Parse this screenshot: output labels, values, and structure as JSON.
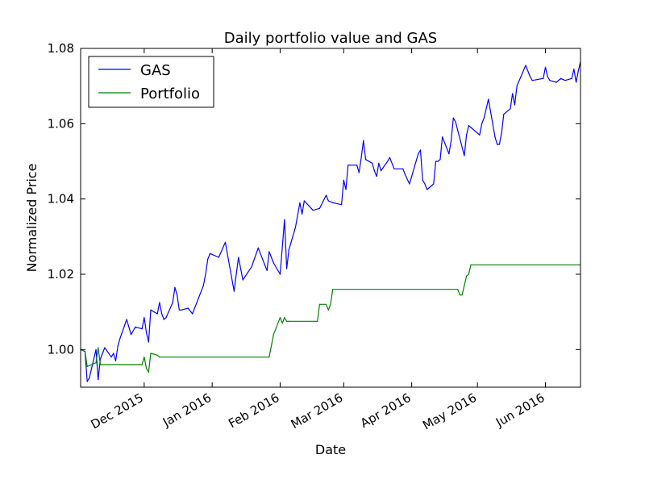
{
  "chart_data": {
    "type": "line",
    "title": "Daily portfolio value and GAS",
    "xlabel": "Date",
    "ylabel": "Normalized Price",
    "xlim": [
      "2015-11-02",
      "2016-06-17"
    ],
    "ylim": [
      0.99,
      1.08
    ],
    "yticks": [
      1.0,
      1.02,
      1.04,
      1.06,
      1.08
    ],
    "ytick_labels": [
      "1.00",
      "1.02",
      "1.04",
      "1.06",
      "1.08"
    ],
    "xticks": [
      "2015-12-01",
      "2016-01-01",
      "2016-02-01",
      "2016-03-01",
      "2016-04-01",
      "2016-05-01",
      "2016-06-01"
    ],
    "xtick_labels": [
      "Dec 2015",
      "Jan 2016",
      "Feb 2016",
      "Mar 2016",
      "Apr 2016",
      "May 2016",
      "Jun 2016"
    ],
    "legend_position": "top-left",
    "grid": false,
    "series": [
      {
        "name": "GAS",
        "color": "#0000ff",
        "x": [
          "2015-11-02",
          "2015-11-04",
          "2015-11-05",
          "2015-11-06",
          "2015-11-09",
          "2015-11-10",
          "2015-11-11",
          "2015-11-12",
          "2015-11-13",
          "2015-11-16",
          "2015-11-17",
          "2015-11-18",
          "2015-11-19",
          "2015-11-20",
          "2015-11-23",
          "2015-11-25",
          "2015-11-27",
          "2015-11-30",
          "2015-12-01",
          "2015-12-02",
          "2015-12-03",
          "2015-12-04",
          "2015-12-07",
          "2015-12-08",
          "2015-12-09",
          "2015-12-10",
          "2015-12-11",
          "2015-12-14",
          "2015-12-15",
          "2015-12-16",
          "2015-12-17",
          "2015-12-18",
          "2015-12-21",
          "2015-12-23",
          "2015-12-28",
          "2015-12-29",
          "2015-12-30",
          "2015-12-31",
          "2016-01-04",
          "2016-01-07",
          "2016-01-11",
          "2016-01-13",
          "2016-01-14",
          "2016-01-15",
          "2016-01-19",
          "2016-01-22",
          "2016-01-25",
          "2016-01-26",
          "2016-01-27",
          "2016-01-28",
          "2016-01-29",
          "2016-02-01",
          "2016-02-03",
          "2016-02-04",
          "2016-02-05",
          "2016-02-08",
          "2016-02-10",
          "2016-02-11",
          "2016-02-12",
          "2016-02-16",
          "2016-02-19",
          "2016-02-22",
          "2016-02-23",
          "2016-02-25",
          "2016-02-29",
          "2016-03-01",
          "2016-03-02",
          "2016-03-03",
          "2016-03-04",
          "2016-03-07",
          "2016-03-08",
          "2016-03-09",
          "2016-03-10",
          "2016-03-11",
          "2016-03-14",
          "2016-03-15",
          "2016-03-16",
          "2016-03-17",
          "2016-03-18",
          "2016-03-21",
          "2016-03-22",
          "2016-03-24",
          "2016-03-28",
          "2016-03-29",
          "2016-03-31",
          "2016-04-01",
          "2016-04-04",
          "2016-04-05",
          "2016-04-06",
          "2016-04-07",
          "2016-04-08",
          "2016-04-11",
          "2016-04-12",
          "2016-04-13",
          "2016-04-14",
          "2016-04-15",
          "2016-04-18",
          "2016-04-19",
          "2016-04-20",
          "2016-04-21",
          "2016-04-25",
          "2016-04-26",
          "2016-04-27",
          "2016-04-28",
          "2016-04-29",
          "2016-05-02",
          "2016-05-03",
          "2016-05-04",
          "2016-05-06",
          "2016-05-09",
          "2016-05-10",
          "2016-05-11",
          "2016-05-12",
          "2016-05-13",
          "2016-05-16",
          "2016-05-17",
          "2016-05-18",
          "2016-05-19",
          "2016-05-23",
          "2016-05-25",
          "2016-05-26",
          "2016-05-31",
          "2016-06-01",
          "2016-06-02",
          "2016-06-03",
          "2016-06-06",
          "2016-06-08",
          "2016-06-10",
          "2016-06-13",
          "2016-06-14",
          "2016-06-15",
          "2016-06-16",
          "2016-06-17"
        ],
        "y": [
          1.0,
          0.9995,
          0.9915,
          0.9925,
          1.0,
          0.992,
          0.9975,
          0.999,
          1.0005,
          0.998,
          0.999,
          0.997,
          1.001,
          1.003,
          1.008,
          1.004,
          1.006,
          1.0055,
          1.0085,
          1.0045,
          1.002,
          1.0105,
          1.0095,
          1.0125,
          1.0095,
          1.008,
          1.0085,
          1.0125,
          1.0165,
          1.0145,
          1.0105,
          1.0105,
          1.011,
          1.0095,
          1.017,
          1.02,
          1.024,
          1.0255,
          1.0245,
          1.0285,
          1.0155,
          1.0245,
          1.0215,
          1.0185,
          1.022,
          1.027,
          1.0225,
          1.021,
          1.026,
          1.0245,
          1.023,
          1.02,
          1.0345,
          1.0215,
          1.0265,
          1.0325,
          1.039,
          1.036,
          1.0395,
          1.037,
          1.0375,
          1.041,
          1.0395,
          1.039,
          1.0385,
          1.045,
          1.0425,
          1.049,
          1.049,
          1.049,
          1.047,
          1.051,
          1.0555,
          1.0505,
          1.0495,
          1.0475,
          1.046,
          1.0495,
          1.0475,
          1.05,
          1.051,
          1.048,
          1.048,
          1.0465,
          1.044,
          1.046,
          1.052,
          1.053,
          1.045,
          1.044,
          1.0425,
          1.044,
          1.05,
          1.05,
          1.0505,
          1.0565,
          1.052,
          1.0555,
          1.0615,
          1.0605,
          1.0515,
          1.057,
          1.0595,
          1.059,
          1.0585,
          1.057,
          1.06,
          1.0615,
          1.0665,
          1.0565,
          1.0545,
          1.0545,
          1.0575,
          1.0625,
          1.064,
          1.068,
          1.065,
          1.07,
          1.0755,
          1.0725,
          1.0715,
          1.072,
          1.075,
          1.0725,
          1.0715,
          1.071,
          1.072,
          1.0715,
          1.072,
          1.0745,
          1.071,
          1.074,
          1.0765
        ]
      },
      {
        "name": "Portfolio",
        "color": "#008000",
        "x": [
          "2015-11-02",
          "2015-11-04",
          "2015-11-05",
          "2015-11-09",
          "2015-11-10",
          "2015-11-11",
          "2015-11-30",
          "2015-12-01",
          "2015-12-02",
          "2015-12-03",
          "2015-12-04",
          "2015-12-07",
          "2015-12-08",
          "2016-01-27",
          "2016-01-29",
          "2016-02-01",
          "2016-02-02",
          "2016-02-03",
          "2016-02-04",
          "2016-02-05",
          "2016-02-18",
          "2016-02-19",
          "2016-02-22",
          "2016-02-23",
          "2016-02-24",
          "2016-02-25",
          "2016-04-22",
          "2016-04-23",
          "2016-04-24",
          "2016-04-25",
          "2016-04-26",
          "2016-04-27",
          "2016-04-28",
          "2016-06-17"
        ],
        "y": [
          1.0,
          0.9995,
          0.9955,
          0.9965,
          1.0005,
          0.996,
          0.996,
          0.998,
          0.995,
          0.994,
          0.999,
          0.9985,
          0.998,
          0.998,
          1.004,
          1.0085,
          1.007,
          1.0085,
          1.0075,
          1.0075,
          1.0075,
          1.012,
          1.012,
          1.0105,
          1.012,
          1.016,
          1.016,
          1.0145,
          1.0145,
          1.017,
          1.0195,
          1.02,
          1.0225,
          1.0225
        ]
      }
    ]
  }
}
